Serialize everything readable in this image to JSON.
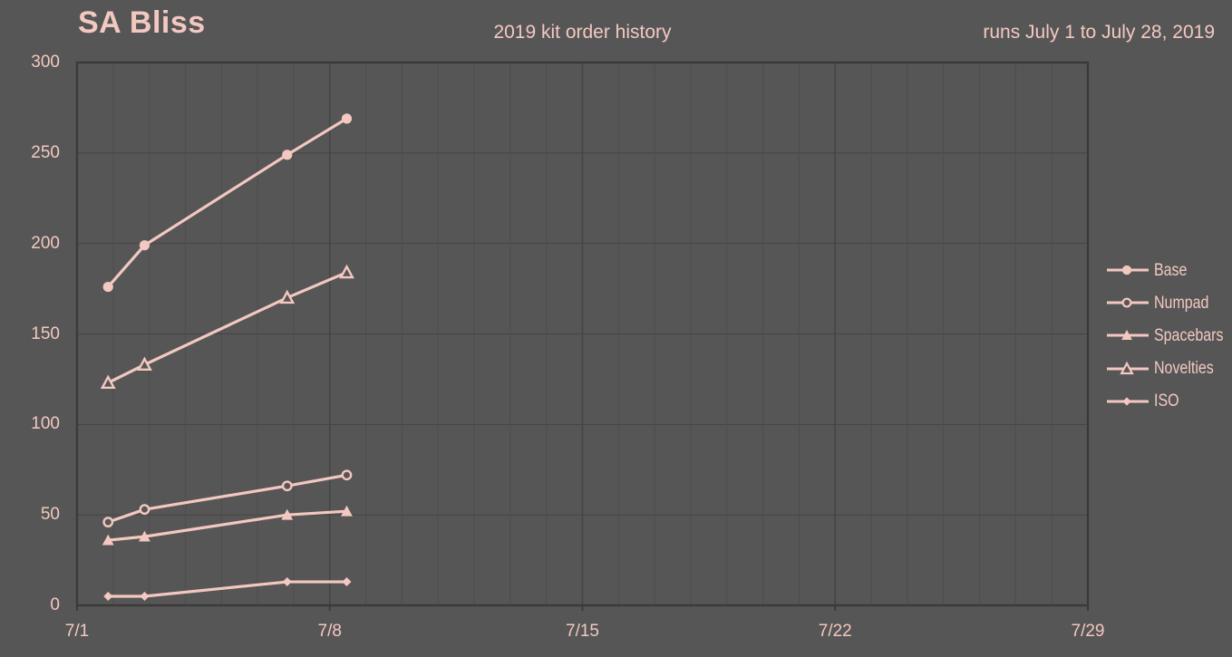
{
  "header": {
    "title": "SA Bliss",
    "subtitle": "2019 kit order history",
    "range_note": "runs July 1 to July 28, 2019"
  },
  "colors": {
    "background": "#565656",
    "accent": "#f3c8c0",
    "grid_minor": "#4d4d4d",
    "grid_major": "#454545",
    "border": "#3a3a3a"
  },
  "chart_data": {
    "type": "line",
    "title": "2019 kit order history",
    "subtitle_left": "SA Bliss",
    "subtitle_right": "runs July 1 to July 28, 2019",
    "legend_position": "right",
    "grid": true,
    "x_axis": {
      "unit": "date",
      "range_days_from_july1": [
        0,
        28
      ],
      "tick_labels": [
        "7/1",
        "7/8",
        "7/15",
        "7/22",
        "7/29"
      ],
      "tick_positions_days": [
        0,
        7,
        14,
        21,
        28
      ],
      "minor_grid_interval_days": 1,
      "major_grid_interval_days": 7
    },
    "y_axis": {
      "range": [
        0,
        300
      ],
      "tick_interval": 50,
      "tick_labels": [
        "0",
        "50",
        "100",
        "150",
        "200",
        "250",
        "300"
      ]
    },
    "x_days_from_july1": [
      0.86,
      1.87,
      5.82,
      7.47
    ],
    "series": [
      {
        "name": "Base",
        "marker": "filled-circle",
        "values": [
          176,
          199,
          249,
          269
        ]
      },
      {
        "name": "Numpad",
        "marker": "open-circle",
        "values": [
          46,
          53,
          66,
          72
        ]
      },
      {
        "name": "Spacebars",
        "marker": "filled-triangle",
        "values": [
          36,
          38,
          50,
          52
        ]
      },
      {
        "name": "Novelties",
        "marker": "open-triangle",
        "values": [
          123,
          133,
          170,
          184
        ]
      },
      {
        "name": "ISO",
        "marker": "filled-diamond",
        "values": [
          5,
          5,
          13,
          13
        ]
      }
    ]
  },
  "legend": {
    "items": [
      {
        "label": "Base",
        "marker": "filled-circle"
      },
      {
        "label": "Numpad",
        "marker": "open-circle"
      },
      {
        "label": "Spacebars",
        "marker": "filled-triangle"
      },
      {
        "label": "Novelties",
        "marker": "open-triangle"
      },
      {
        "label": "ISO",
        "marker": "filled-diamond"
      }
    ]
  }
}
